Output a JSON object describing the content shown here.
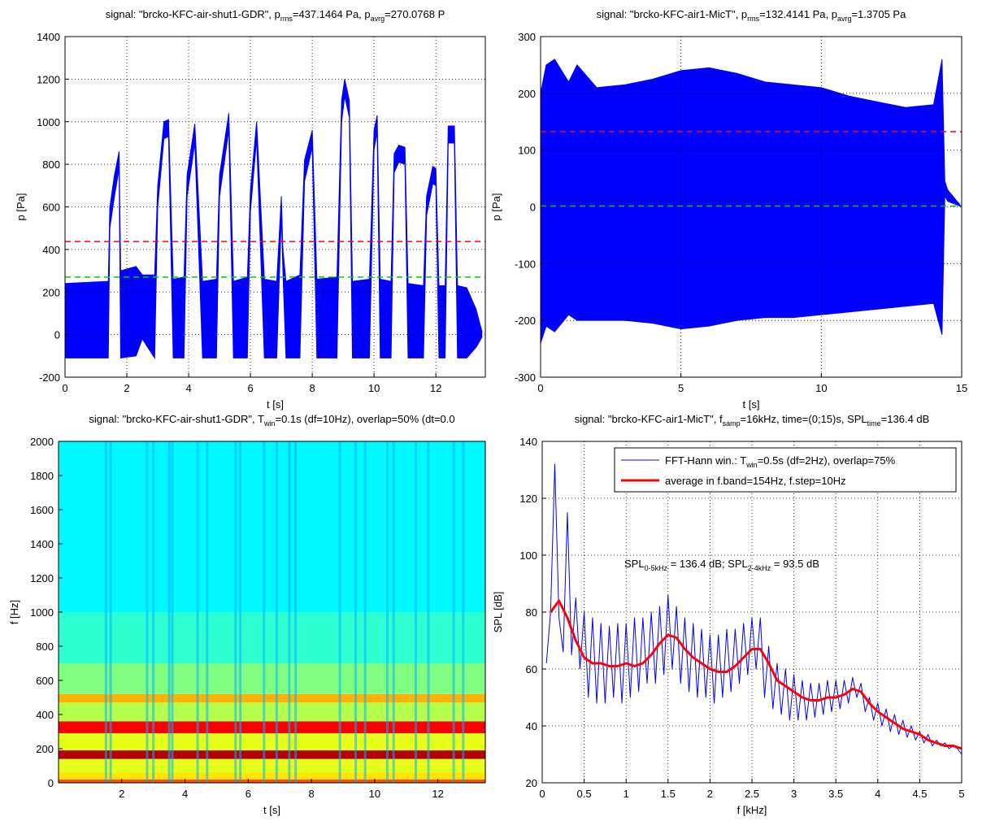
{
  "chart_data": [
    {
      "type": "band",
      "title": [
        "signal: \"brcko-KFC-air-shut1-GDR\",  p",
        "rms",
        "=437.1464 Pa,  p",
        "avrg",
        "=270.0768 P"
      ],
      "xlabel": "t [s]",
      "ylabel": "p [Pa]",
      "x": [
        0,
        1.4,
        1.45,
        1.6,
        1.75,
        1.8,
        2.3,
        2.5,
        2.9,
        3.0,
        3.2,
        3.35,
        3.5,
        3.85,
        3.95,
        4.2,
        4.45,
        4.9,
        5.0,
        5.3,
        5.45,
        5.9,
        6.0,
        6.2,
        6.45,
        6.85,
        7.0,
        7.05,
        7.15,
        7.6,
        7.75,
        8.0,
        8.15,
        8.8,
        8.95,
        9.05,
        9.2,
        9.3,
        9.85,
        10.0,
        10.1,
        10.2,
        10.55,
        10.65,
        10.8,
        11.0,
        11.1,
        11.6,
        11.7,
        11.9,
        12.0,
        12.1,
        12.3,
        12.4,
        12.6,
        12.7,
        13.0,
        13.3,
        13.5
      ],
      "series": [
        {
          "color": "#0000ff",
          "values": [
            240,
            250,
            600,
            750,
            860,
            300,
            320,
            280,
            280,
            700,
            1000,
            1010,
            260,
            270,
            750,
            990,
            250,
            260,
            750,
            1040,
            250,
            270,
            680,
            1000,
            260,
            250,
            650,
            400,
            250,
            280,
            820,
            960,
            260,
            270,
            1100,
            1200,
            1100,
            250,
            260,
            960,
            1030,
            260,
            250,
            850,
            890,
            880,
            240,
            230,
            650,
            790,
            780,
            230,
            230,
            980,
            980,
            230,
            220,
            120,
            10
          ]
        },
        {
          "color": "#0000ff",
          "values": [
            -110,
            -110,
            500,
            650,
            780,
            -110,
            -100,
            -20,
            -110,
            600,
            920,
            930,
            -110,
            -110,
            650,
            900,
            -110,
            -110,
            650,
            960,
            -110,
            -110,
            580,
            920,
            -110,
            -110,
            560,
            300,
            -110,
            -110,
            720,
            880,
            -110,
            -110,
            1000,
            1120,
            1020,
            -110,
            -110,
            870,
            950,
            -110,
            -110,
            760,
            810,
            800,
            -110,
            -110,
            560,
            710,
            700,
            -110,
            -110,
            900,
            900,
            -110,
            -110,
            -60,
            -10
          ]
        }
      ],
      "hlines": [
        437.1464,
        270.0768
      ],
      "hline_colors": [
        "#ff0000",
        "#00cc00"
      ],
      "xlim": [
        0,
        13.6
      ],
      "ylim": [
        -200,
        1400
      ],
      "xticks": [
        0,
        2,
        4,
        6,
        8,
        10,
        12
      ],
      "yticks": [
        -200,
        0,
        200,
        400,
        600,
        800,
        1000,
        1200,
        1400
      ],
      "grid": true
    },
    {
      "type": "band",
      "title": [
        "signal: \"brcko-KFC-air1-MicT\",  p",
        "rms",
        "=132.4141 Pa,  p",
        "avrg",
        "=1.3705 Pa"
      ],
      "xlabel": "t [s]",
      "ylabel": "p [Pa]",
      "x": [
        0,
        0.2,
        0.5,
        1,
        1.3,
        2,
        3,
        4,
        5,
        6,
        7,
        8,
        9,
        10,
        11,
        12,
        13,
        14,
        14.3,
        14.4,
        14.5,
        15
      ],
      "series": [
        {
          "color": "#0000ff",
          "values": [
            200,
            250,
            260,
            220,
            250,
            210,
            215,
            225,
            240,
            245,
            235,
            220,
            215,
            210,
            195,
            185,
            175,
            180,
            260,
            45,
            30,
            0
          ]
        },
        {
          "color": "#0000ff",
          "values": [
            -240,
            -210,
            -220,
            -190,
            -200,
            -200,
            -200,
            -205,
            -215,
            -210,
            -200,
            -195,
            -195,
            -190,
            -185,
            -180,
            -175,
            -170,
            -225,
            20,
            10,
            0
          ]
        }
      ],
      "hlines": [
        132.4141,
        1.3705
      ],
      "hline_colors": [
        "#ff0000",
        "#00cc00"
      ],
      "xlim": [
        0,
        15
      ],
      "ylim": [
        -300,
        300
      ],
      "xticks": [
        0,
        5,
        10,
        15
      ],
      "yticks": [
        -300,
        -200,
        -100,
        0,
        100,
        200,
        300
      ],
      "grid": true
    },
    {
      "type": "spectrogram",
      "title": [
        "signal: \"brcko-KFC-air-shut1-GDR\",  T",
        "win",
        "=0.1s (df=10Hz), overlap=50% (dt=0.0"
      ],
      "xlabel": "t [s]",
      "ylabel": "f [Hz]",
      "y_edges": [
        0,
        20,
        60,
        140,
        190,
        290,
        360,
        470,
        520,
        700,
        1000,
        2000
      ],
      "levels": [
        0.8,
        0.65,
        0.6,
        0.95,
        0.6,
        0.88,
        0.55,
        0.7,
        0.5,
        0.42,
        0.37
      ],
      "stripes": [
        1.5,
        1.65,
        2.8,
        3.0,
        3.5,
        3.6,
        4.4,
        4.7,
        5.6,
        5.75,
        6.5,
        6.9,
        7.3,
        7.5,
        8.9,
        9.4,
        9.7,
        10.4,
        10.6,
        11.3,
        11.7,
        12.5,
        12.8
      ],
      "stripe_level": 0.3,
      "xlim": [
        0,
        13.5
      ],
      "ylim": [
        0,
        2000
      ],
      "xticks": [
        2,
        4,
        6,
        8,
        10,
        12
      ],
      "yticks": [
        0,
        200,
        400,
        600,
        800,
        1000,
        1200,
        1400,
        1600,
        1800,
        2000
      ],
      "grid": false
    },
    {
      "type": "line",
      "title": [
        "signal: \"brcko-KFC-air1-MicT\",  f",
        "samp",
        "=16kHz,  time=(0;15)s,  SPL",
        "time",
        "=136.4 dB"
      ],
      "xlabel": "f [kHz]",
      "ylabel": "SPL [dB]",
      "annotation": [
        "SPL",
        "0-5kHz",
        " = 136.4 dB;    SPL",
        "2-4kHz",
        " = 93.5 dB"
      ],
      "legend": "northeast",
      "series": [
        {
          "name": [
            "FFT-Hann win.: T",
            "win",
            "=0.5s (df=2Hz), overlap=75%"
          ],
          "color": "#0000ff",
          "width": 1,
          "x": [
            0.05,
            0.1,
            0.15,
            0.2,
            0.25,
            0.3,
            0.35,
            0.4,
            0.45,
            0.5,
            0.55,
            0.6,
            0.65,
            0.7,
            0.75,
            0.8,
            0.85,
            0.9,
            0.95,
            1.0,
            1.05,
            1.1,
            1.15,
            1.2,
            1.25,
            1.3,
            1.35,
            1.4,
            1.45,
            1.5,
            1.55,
            1.6,
            1.65,
            1.7,
            1.75,
            1.8,
            1.85,
            1.9,
            1.95,
            2.0,
            2.05,
            2.1,
            2.15,
            2.2,
            2.25,
            2.3,
            2.35,
            2.4,
            2.45,
            2.5,
            2.55,
            2.6,
            2.65,
            2.7,
            2.75,
            2.8,
            2.85,
            2.9,
            2.95,
            3.0,
            3.05,
            3.1,
            3.15,
            3.2,
            3.25,
            3.3,
            3.35,
            3.4,
            3.45,
            3.5,
            3.55,
            3.6,
            3.65,
            3.7,
            3.75,
            3.8,
            3.85,
            3.9,
            3.95,
            4.0,
            4.05,
            4.1,
            4.15,
            4.2,
            4.25,
            4.3,
            4.35,
            4.4,
            4.45,
            4.5,
            4.55,
            4.6,
            4.65,
            4.7,
            4.75,
            4.8,
            4.85,
            4.9,
            4.95,
            5.0
          ],
          "values": [
            62,
            80,
            132,
            78,
            66,
            115,
            65,
            85,
            60,
            80,
            50,
            78,
            48,
            76,
            48,
            75,
            50,
            76,
            48,
            76,
            50,
            78,
            52,
            78,
            55,
            80,
            55,
            82,
            58,
            86,
            60,
            82,
            55,
            78,
            52,
            76,
            50,
            74,
            50,
            72,
            48,
            72,
            50,
            74,
            52,
            74,
            55,
            76,
            58,
            78,
            60,
            78,
            50,
            68,
            46,
            62,
            44,
            60,
            42,
            58,
            42,
            56,
            42,
            55,
            43,
            55,
            44,
            56,
            45,
            56,
            46,
            56,
            48,
            57,
            50,
            55,
            45,
            50,
            42,
            48,
            40,
            46,
            38,
            44,
            37,
            42,
            36,
            40,
            35,
            38,
            34,
            37,
            33,
            35,
            33,
            34,
            32,
            33,
            32,
            30
          ]
        },
        {
          "name": "average in f.band=154Hz, f.step=10Hz",
          "color": "#ff0000",
          "width": 3,
          "x": [
            0.1,
            0.2,
            0.3,
            0.4,
            0.5,
            0.6,
            0.7,
            0.8,
            0.9,
            1.0,
            1.1,
            1.2,
            1.3,
            1.4,
            1.5,
            1.6,
            1.7,
            1.8,
            1.9,
            2.0,
            2.1,
            2.2,
            2.3,
            2.4,
            2.5,
            2.6,
            2.7,
            2.8,
            2.9,
            3.0,
            3.1,
            3.2,
            3.3,
            3.4,
            3.5,
            3.6,
            3.7,
            3.8,
            3.9,
            4.0,
            4.1,
            4.2,
            4.3,
            4.4,
            4.5,
            4.6,
            4.7,
            4.8,
            4.9,
            5.0
          ],
          "values": [
            80,
            84,
            78,
            70,
            64,
            62,
            62,
            61,
            61,
            62,
            61,
            62,
            65,
            69,
            72,
            71,
            67,
            64,
            62,
            60,
            59,
            59,
            61,
            64,
            67,
            67,
            62,
            56,
            54,
            52,
            50,
            49,
            49,
            50,
            50,
            51,
            53,
            52,
            48,
            45,
            43,
            41,
            39,
            38,
            37,
            35,
            34,
            33,
            33,
            32
          ]
        }
      ],
      "xlim": [
        0,
        5
      ],
      "ylim": [
        20,
        140
      ],
      "xticks": [
        0,
        0.5,
        1,
        1.5,
        2,
        2.5,
        3,
        3.5,
        4,
        4.5,
        5
      ],
      "yticks": [
        20,
        40,
        60,
        80,
        100,
        120,
        140
      ],
      "grid": true
    }
  ]
}
